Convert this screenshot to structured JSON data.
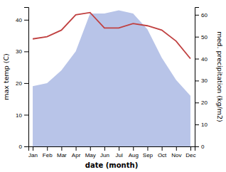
{
  "chart_data": {
    "type": "area",
    "categories": [
      "Jan",
      "Feb",
      "Mar",
      "Apr",
      "May",
      "Jun",
      "Jul",
      "Aug",
      "Sep",
      "Oct",
      "Nov",
      "Dec"
    ],
    "xlabel": "date (month)",
    "ylabel": "max temp (C)",
    "y2label": "med. precipitation (kg/m2)",
    "series": [
      {
        "type": "area",
        "color": "#b8c4e8",
        "values": [
          19,
          20,
          24,
          30,
          42,
          42,
          43,
          42,
          37,
          28,
          21,
          16
        ]
      },
      {
        "type": "line",
        "color": "#c04040",
        "axis": "y2",
        "values": [
          49,
          50,
          53,
          60,
          61,
          54,
          54,
          56,
          55,
          53,
          48,
          40
        ]
      }
    ],
    "ylim": [
      0,
      44
    ],
    "yticks": [
      0,
      10,
      20,
      30,
      40
    ],
    "y2lim": [
      0,
      63.5
    ],
    "y2ticks": [
      0,
      10,
      20,
      30,
      40,
      50,
      60
    ],
    "grid": false
  }
}
